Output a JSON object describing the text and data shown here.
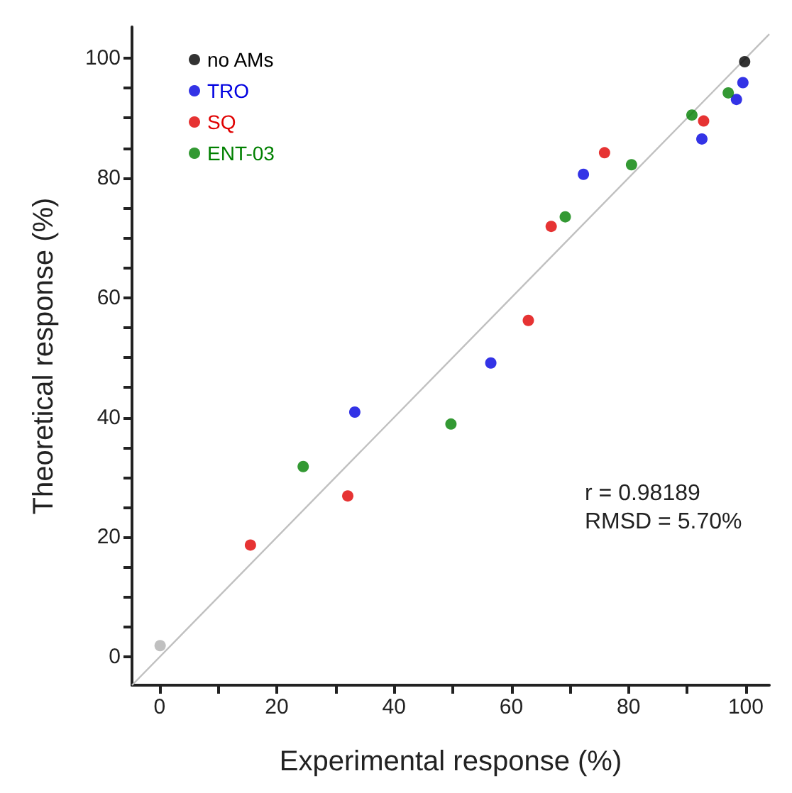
{
  "chart_data": {
    "type": "scatter",
    "xlabel": "Experimental response (%)",
    "ylabel": "Theoretical response (%)",
    "xlim": [
      -4.7,
      104
    ],
    "ylim": [
      -4.7,
      105.2
    ],
    "xticks": [
      0,
      {
        "value": 10,
        "label": null
      },
      20,
      {
        "value": 30,
        "label": null
      },
      40,
      {
        "value": 50,
        "label": null
      },
      60,
      {
        "value": 70,
        "label": null
      },
      80,
      {
        "value": 90,
        "label": null
      },
      100
    ],
    "yticks": [
      0,
      {
        "value": 5,
        "label": null
      },
      {
        "value": 10,
        "label": null
      },
      {
        "value": 15,
        "label": null
      },
      20,
      {
        "value": 25,
        "label": null
      },
      {
        "value": 30,
        "label": null
      },
      {
        "value": 35,
        "label": null
      },
      40,
      {
        "value": 45,
        "label": null
      },
      {
        "value": 50,
        "label": null
      },
      {
        "value": 55,
        "label": null
      },
      60,
      {
        "value": 65,
        "label": null
      },
      {
        "value": 70,
        "label": null
      },
      {
        "value": 75,
        "label": null
      },
      80,
      {
        "value": 85,
        "label": null
      },
      {
        "value": 90,
        "label": null
      },
      {
        "value": 95,
        "label": null
      },
      100
    ],
    "grid": false,
    "legend": "top left",
    "marker": "circle",
    "series": [
      {
        "name": "no AMs",
        "color": "#000000",
        "x": [
          99.8
        ],
        "values": [
          99.4
        ]
      },
      {
        "name": "TRO",
        "color": "#0000e0",
        "x": [
          99.5,
          98.4,
          92.5,
          72.3,
          56.5,
          33.3
        ],
        "values": [
          95.9,
          93.1,
          86.5,
          80.6,
          49.1,
          40.9
        ]
      },
      {
        "name": "SQ",
        "color": "#e00000",
        "x": [
          92.8,
          75.9,
          66.8,
          62.9,
          32.1,
          15.5
        ],
        "values": [
          89.5,
          84.2,
          71.9,
          56.2,
          26.9,
          18.7
        ]
      },
      {
        "name": "ENT-03",
        "color": "#008000",
        "x": [
          97.0,
          90.8,
          80.5,
          69.2,
          49.7,
          24.5
        ],
        "values": [
          94.2,
          90.5,
          82.2,
          73.5,
          38.9,
          31.8
        ]
      },
      {
        "color": "#b0b0b0",
        "x": [
          0.1
        ],
        "values": [
          1.9
        ]
      },
      {
        "type": "line",
        "color": "#c0c0c0",
        "x": [
          -4.7,
          104
        ],
        "values": [
          -4.7,
          104
        ],
        "marker": "none"
      }
    ],
    "annotations": [
      "r = 0.98189",
      "RMSD = 5.70%"
    ]
  }
}
